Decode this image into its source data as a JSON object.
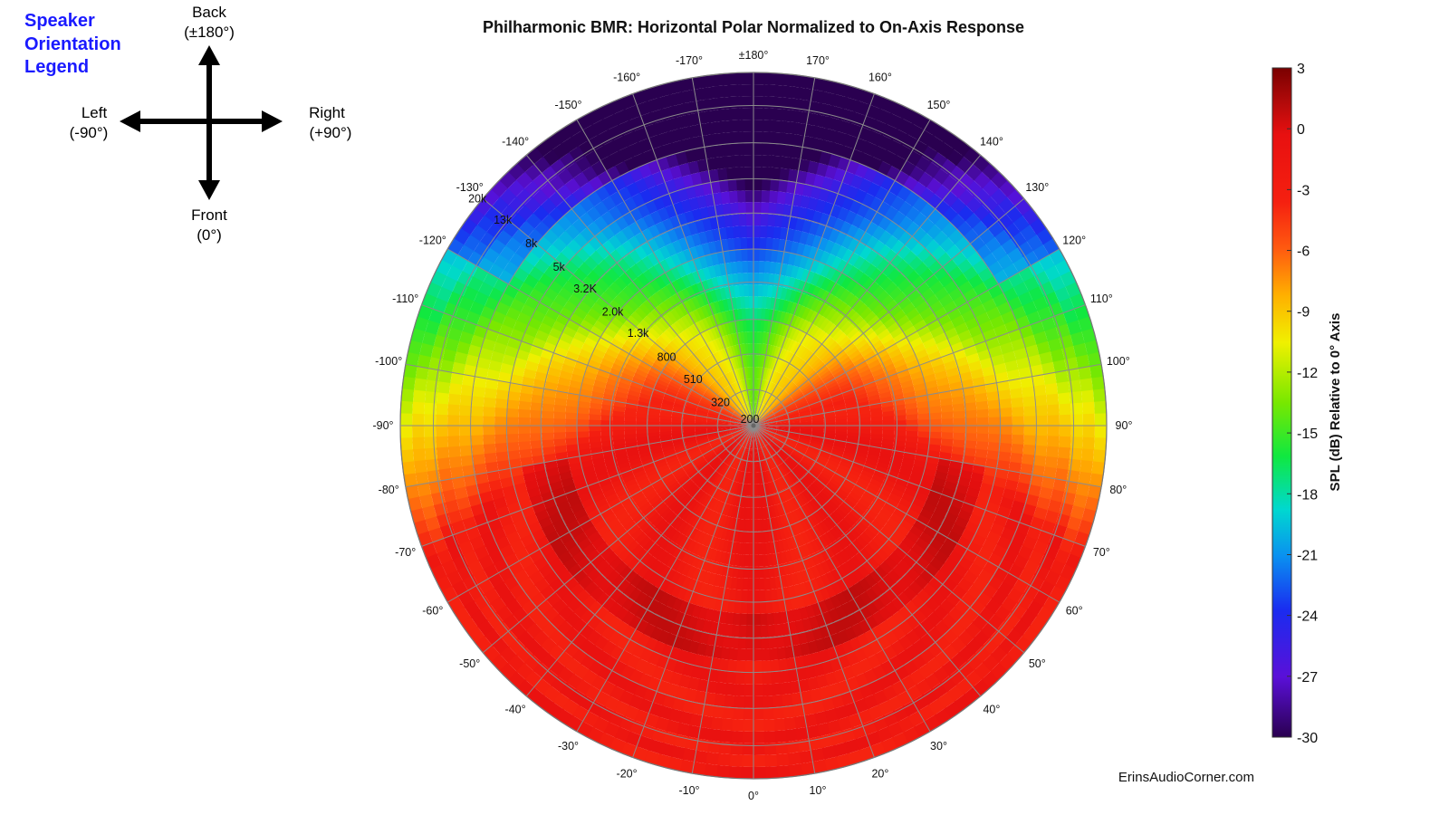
{
  "orientation_legend": {
    "title_lines": [
      "Speaker",
      "Orientation",
      "Legend"
    ],
    "back_label": "Back",
    "back_sub": "(±180°)",
    "front_label": "Front",
    "front_sub": "(0°)",
    "left_label": "Left",
    "left_sub": "(-90°)",
    "right_label": "Right",
    "right_sub": "(+90°)"
  },
  "watermark": "ErinsAudioCorner.com",
  "chart_data": {
    "type": "heatmap",
    "subtype": "polar",
    "title": "Philharmonic BMR: Horizontal Polar Normalized to On-Axis Response",
    "angle_labels": [
      "0°",
      "10°",
      "20°",
      "30°",
      "40°",
      "50°",
      "60°",
      "70°",
      "80°",
      "90°",
      "100°",
      "110°",
      "120°",
      "130°",
      "140°",
      "150°",
      "160°",
      "170°",
      "±180°",
      "-170°",
      "-160°",
      "-150°",
      "-140°",
      "-130°",
      "-120°",
      "-110°",
      "-100°",
      "-90°",
      "-80°",
      "-70°",
      "-60°",
      "-50°",
      "-40°",
      "-30°",
      "-20°",
      "-10°"
    ],
    "angle_values": [
      0,
      10,
      20,
      30,
      40,
      50,
      60,
      70,
      80,
      90,
      100,
      110,
      120,
      130,
      140,
      150,
      160,
      170,
      180,
      -170,
      -160,
      -150,
      -140,
      -130,
      -120,
      -110,
      -100,
      -90,
      -80,
      -70,
      -60,
      -50,
      -40,
      -30,
      -20,
      -10
    ],
    "radial_axis": {
      "quantity": "frequency",
      "scale": "log",
      "range": [
        200,
        20000
      ],
      "tick_labels": [
        "200",
        "320",
        "510",
        "800",
        "1.3k",
        "2.0k",
        "3.2K",
        "5k",
        "8k",
        "13k",
        "20k"
      ],
      "tick_values": [
        200,
        320,
        510,
        800,
        1300,
        2000,
        3200,
        5000,
        8000,
        13000,
        20000
      ]
    },
    "colorbar": {
      "label": "SPL (dB) Relative to 0° Axis",
      "range": [
        -30,
        3
      ],
      "tick_labels": [
        "3",
        "0",
        "-3",
        "-6",
        "-9",
        "-12",
        "-15",
        "-18",
        "-21",
        "-24",
        "-27",
        "-30"
      ],
      "tick_values": [
        3,
        0,
        -3,
        -6,
        -9,
        -12,
        -15,
        -18,
        -21,
        -24,
        -27,
        -30
      ],
      "colormap": [
        "#2a0050",
        "#5a10d8",
        "#1a2cf0",
        "#0a90f0",
        "#00d8d0",
        "#10e840",
        "#78e800",
        "#f0f000",
        "#ffb000",
        "#ff5a10",
        "#f52010",
        "#e81010",
        "#b00a0a",
        "#7a0000"
      ]
    },
    "grid": true,
    "grid_color": "#8c8c8c"
  }
}
